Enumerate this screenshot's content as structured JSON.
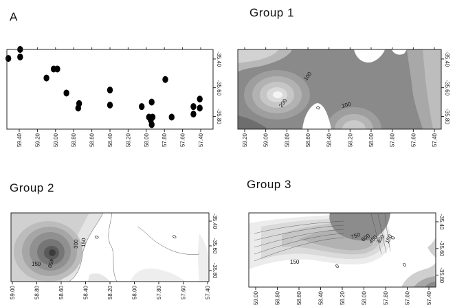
{
  "titles": {
    "panel_a": "A",
    "group1": "Group 1",
    "group2": "Group 2",
    "group3": "Group 3"
  },
  "panel_a": {
    "x_ticks": [
      "59.40",
      "59.20",
      "59.00",
      "58.80",
      "58.60",
      "58.40",
      "58.20",
      "58.00",
      "57.80",
      "57.60",
      "57.40"
    ],
    "y_ticks": [
      "-35.40",
      "-35.60",
      "-35.80"
    ],
    "points": [
      {
        "lon": 59.52,
        "lat": -35.43
      },
      {
        "lon": 59.39,
        "lat": -35.37
      },
      {
        "lon": 59.39,
        "lat": -35.42
      },
      {
        "lon": 59.1,
        "lat": -35.56
      },
      {
        "lon": 59.02,
        "lat": -35.5
      },
      {
        "lon": 58.98,
        "lat": -35.5
      },
      {
        "lon": 58.88,
        "lat": -35.66
      },
      {
        "lon": 58.75,
        "lat": -35.76
      },
      {
        "lon": 58.74,
        "lat": -35.73
      },
      {
        "lon": 58.4,
        "lat": -35.64
      },
      {
        "lon": 58.4,
        "lat": -35.74
      },
      {
        "lon": 58.05,
        "lat": -35.75
      },
      {
        "lon": 57.94,
        "lat": -35.87
      },
      {
        "lon": 57.95,
        "lat": -35.84
      },
      {
        "lon": 57.97,
        "lat": -35.82
      },
      {
        "lon": 57.93,
        "lat": -35.82
      },
      {
        "lon": 57.94,
        "lat": -35.72
      },
      {
        "lon": 57.79,
        "lat": -35.57
      },
      {
        "lon": 57.72,
        "lat": -35.82
      },
      {
        "lon": 57.48,
        "lat": -35.75
      },
      {
        "lon": 57.48,
        "lat": -35.8
      },
      {
        "lon": 57.41,
        "lat": -35.7
      },
      {
        "lon": 57.41,
        "lat": -35.76
      }
    ]
  },
  "group1": {
    "x_ticks": [
      "59.20",
      "59.00",
      "58.80",
      "58.60",
      "58.40",
      "58.20",
      "58.00",
      "57.80",
      "57.60",
      "57.40"
    ],
    "y_ticks": [
      "-35.40",
      "-35.60",
      "-35.80"
    ],
    "contour_labels": [
      "100",
      "200",
      "0",
      "100"
    ]
  },
  "group2": {
    "x_ticks": [
      "59.00",
      "58.80",
      "58.60",
      "58.40",
      "58.20",
      "58.00",
      "57.80",
      "57.60",
      "57.40"
    ],
    "y_ticks": [
      "-35.40",
      "-35.60",
      "-35.80"
    ],
    "contour_labels": [
      "300",
      "150",
      "0",
      "0",
      "450",
      "150"
    ]
  },
  "group3": {
    "x_ticks": [
      "59.00",
      "58.80",
      "58.60",
      "58.40",
      "58.20",
      "58.00",
      "57.80",
      "57.60",
      "57.40"
    ],
    "y_ticks": [
      "-35.40",
      "-35.60",
      "-35.80"
    ],
    "contour_labels": [
      "750",
      "600",
      "450",
      "300",
      "150",
      "0",
      "150",
      "0",
      "0"
    ]
  }
}
